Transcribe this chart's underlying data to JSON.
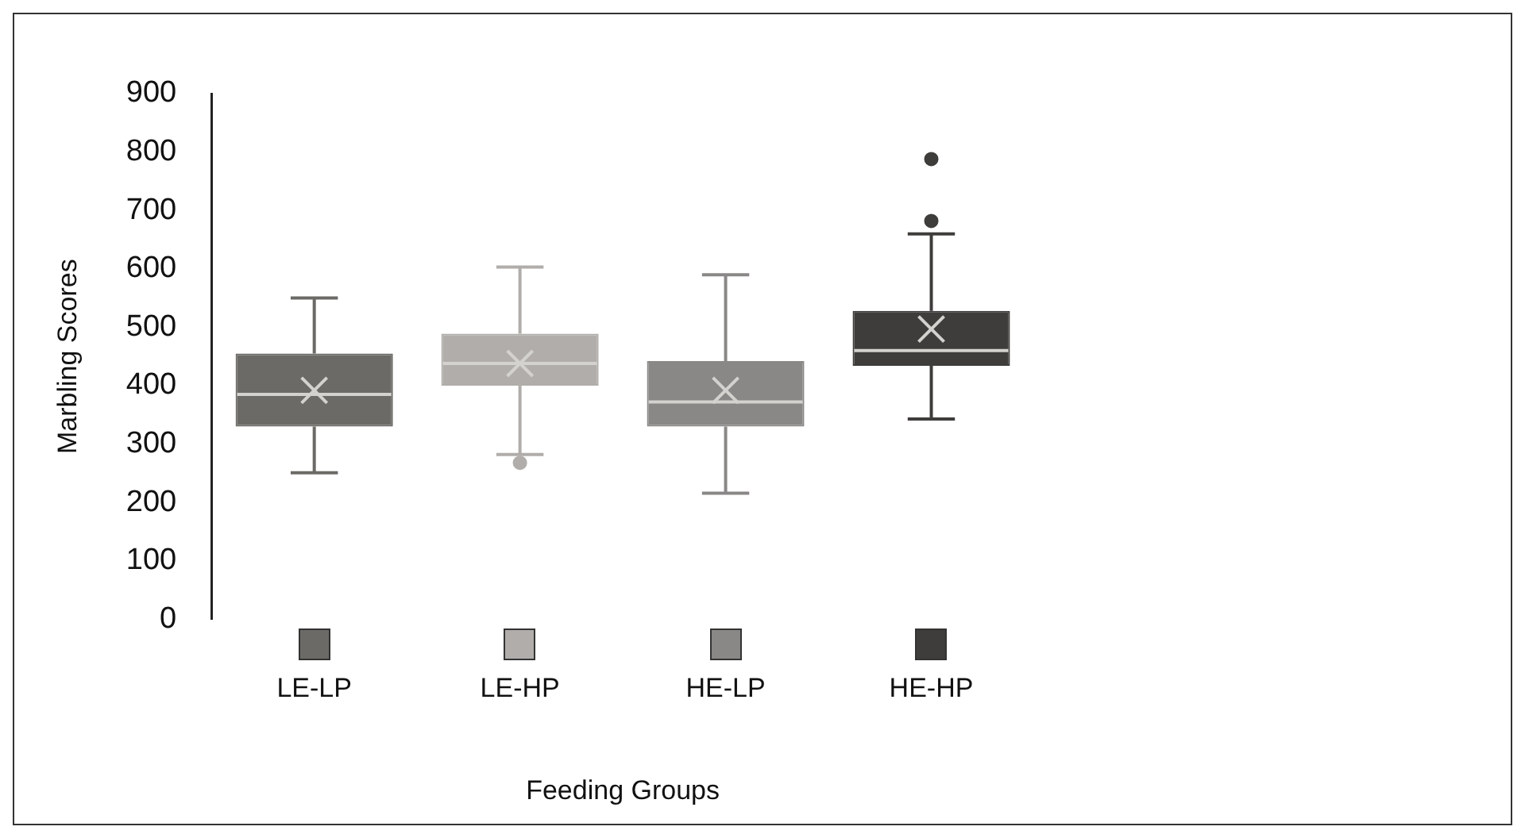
{
  "chart_data": {
    "type": "box",
    "xlabel": "Feeding Groups",
    "ylabel": "Marbling Scores",
    "categories": [
      "LE-LP",
      "LE-HP",
      "HE-LP",
      "HE-HP"
    ],
    "colors": [
      "#6b6a66",
      "#b0adaa",
      "#8a8886",
      "#3e3d3b"
    ],
    "ylim": [
      0,
      900
    ],
    "yticks": [
      0,
      100,
      200,
      300,
      400,
      500,
      600,
      700,
      800,
      900
    ],
    "grid": false,
    "boxes": [
      {
        "low": 251,
        "q1": 330,
        "median": 385,
        "q3": 455,
        "high": 550,
        "mean": 392
      },
      {
        "low": 282,
        "q1": 400,
        "median": 438,
        "q3": 489,
        "high": 603,
        "mean": 438,
        "outliers": [
          268
        ]
      },
      {
        "low": 216,
        "q1": 330,
        "median": 372,
        "q3": 442,
        "high": 590,
        "mean": 392
      },
      {
        "low": 343,
        "q1": 434,
        "median": 460,
        "q3": 528,
        "high": 660,
        "mean": 497,
        "outliers": [
          682,
          788
        ]
      }
    ]
  }
}
